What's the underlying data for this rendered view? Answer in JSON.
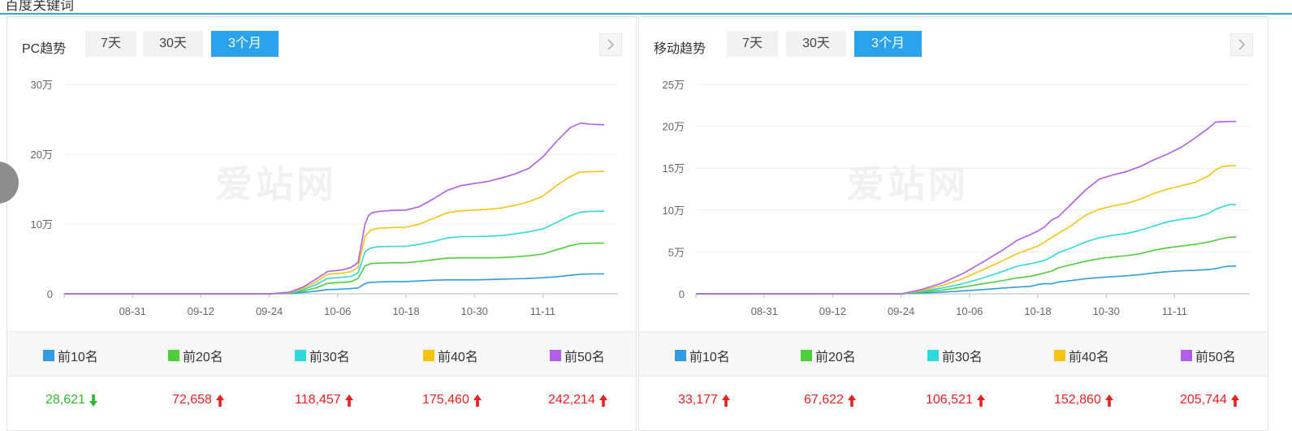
{
  "section_title": "百度关键词",
  "panels": [
    {
      "id": "pc",
      "name": "PC趋势",
      "tabs": [
        "7天",
        "30天",
        "3个月"
      ],
      "active_tab": 2,
      "watermark": "爱站网",
      "legend": [
        "前10名",
        "前20名",
        "前30名",
        "前40名",
        "前50名"
      ],
      "values": [
        {
          "text": "28,621",
          "trend": "down"
        },
        {
          "text": "72,658",
          "trend": "up"
        },
        {
          "text": "118,457",
          "trend": "up"
        },
        {
          "text": "175,460",
          "trend": "up"
        },
        {
          "text": "242,214",
          "trend": "up"
        }
      ]
    },
    {
      "id": "mobile",
      "name": "移动趋势",
      "tabs": [
        "7天",
        "30天",
        "3个月"
      ],
      "active_tab": 2,
      "watermark": "爱站网",
      "legend": [
        "前10名",
        "前20名",
        "前30名",
        "前40名",
        "前50名"
      ],
      "values": [
        {
          "text": "33,177",
          "trend": "up"
        },
        {
          "text": "67,622",
          "trend": "up"
        },
        {
          "text": "106,521",
          "trend": "up"
        },
        {
          "text": "152,860",
          "trend": "up"
        },
        {
          "text": "205,744",
          "trend": "up"
        }
      ]
    }
  ],
  "colors": {
    "accent": "#2aa3ec",
    "series": [
      "#2f9be4",
      "#4ccf3a",
      "#2dd9dd",
      "#f7c313",
      "#b25ce8"
    ],
    "up": "#f01d1d",
    "down": "#2dba2d"
  },
  "chart_data": [
    {
      "type": "line",
      "x_ticks": [
        "08-31",
        "09-12",
        "09-24",
        "10-06",
        "10-18",
        "10-30",
        "11-11"
      ],
      "y_ticks": [
        "0",
        "10万",
        "20万",
        "30万"
      ],
      "ylim": [
        0,
        300000
      ],
      "x": [
        0,
        10,
        20,
        30,
        33,
        35,
        37,
        38.5,
        40,
        41,
        42,
        43,
        44,
        44.5,
        45,
        46,
        48,
        50,
        52,
        54,
        56,
        58,
        60,
        62,
        64,
        66,
        68,
        70,
        72,
        74,
        75.5,
        77,
        78,
        78.5,
        79
      ],
      "series": [
        {
          "name": "前10名",
          "values": [
            0,
            0,
            0,
            0,
            500,
            2000,
            4000,
            6000,
            6500,
            7000,
            7500,
            8500,
            14500,
            16000,
            16500,
            17000,
            17500,
            17500,
            18500,
            19500,
            20000,
            20000,
            20000,
            20500,
            21000,
            21500,
            22000,
            23000,
            24500,
            26500,
            28000,
            28500,
            28500,
            28600,
            28621
          ]
        },
        {
          "name": "前20名",
          "values": [
            0,
            0,
            0,
            0,
            1000,
            4000,
            9000,
            15000,
            16000,
            16500,
            17500,
            22000,
            40000,
            42000,
            43500,
            44000,
            44500,
            44500,
            46500,
            49000,
            51000,
            51500,
            51500,
            51500,
            52000,
            53000,
            54500,
            57000,
            63000,
            69000,
            72000,
            72500,
            72600,
            72650,
            72658
          ]
        },
        {
          "name": "前30名",
          "values": [
            0,
            0,
            0,
            0,
            1500,
            6000,
            14000,
            22000,
            23000,
            24000,
            25000,
            30000,
            60000,
            64000,
            66000,
            67500,
            68000,
            68000,
            71000,
            75000,
            80000,
            82000,
            82000,
            82500,
            83500,
            86000,
            89000,
            93000,
            102000,
            112000,
            117000,
            118000,
            118300,
            118400,
            118457
          ]
        },
        {
          "name": "前40名",
          "values": [
            0,
            0,
            0,
            0,
            2000,
            8000,
            18000,
            28000,
            29000,
            30000,
            32000,
            38000,
            82000,
            88000,
            92000,
            94000,
            95000,
            95500,
            100000,
            108000,
            116000,
            119000,
            120000,
            121000,
            123000,
            127000,
            132000,
            140000,
            155000,
            168000,
            174500,
            175000,
            175200,
            175400,
            175460
          ]
        },
        {
          "name": "前50名",
          "values": [
            0,
            0,
            0,
            0,
            2500,
            10000,
            22000,
            32000,
            33500,
            35000,
            38000,
            45000,
            100000,
            112000,
            116000,
            118000,
            119500,
            120000,
            125000,
            136000,
            148000,
            155000,
            158000,
            161000,
            166000,
            172000,
            180000,
            196000,
            218000,
            238000,
            244500,
            243000,
            242500,
            242300,
            242214
          ]
        }
      ]
    },
    {
      "type": "line",
      "x_ticks": [
        "08-31",
        "09-12",
        "09-24",
        "10-06",
        "10-18",
        "10-30",
        "11-11"
      ],
      "y_ticks": [
        "0",
        "5万",
        "10万",
        "15万",
        "20万",
        "25万"
      ],
      "ylim": [
        0,
        250000
      ],
      "x": [
        0,
        10,
        20,
        30,
        33,
        36,
        39,
        42,
        45,
        47,
        49,
        50,
        51,
        52,
        53,
        55,
        57,
        59,
        61,
        63,
        65,
        67,
        69,
        71,
        73,
        75,
        76,
        77,
        78,
        79
      ],
      "series": [
        {
          "name": "前10名",
          "values": [
            0,
            0,
            0,
            0,
            1000,
            2000,
            3500,
            5000,
            7000,
            8000,
            9000,
            11000,
            12000,
            12000,
            14000,
            16000,
            18000,
            19500,
            20500,
            21500,
            23000,
            25000,
            26500,
            27500,
            28000,
            29000,
            30000,
            32000,
            33000,
            33177
          ]
        },
        {
          "name": "前20名",
          "values": [
            0,
            0,
            0,
            0,
            2000,
            4500,
            8000,
            12000,
            16000,
            19000,
            21000,
            23000,
            25000,
            27000,
            31000,
            35000,
            39000,
            42000,
            44000,
            45500,
            48000,
            52000,
            55000,
            57000,
            59000,
            62000,
            64000,
            66000,
            67500,
            67622
          ]
        },
        {
          "name": "前30名",
          "values": [
            0,
            0,
            0,
            0,
            3000,
            7000,
            12000,
            19000,
            27000,
            33000,
            36000,
            38000,
            40000,
            44000,
            49000,
            55000,
            62000,
            67000,
            70000,
            72000,
            76000,
            81000,
            86000,
            89000,
            91000,
            96000,
            101000,
            104000,
            106500,
            106521
          ]
        },
        {
          "name": "前40名",
          "values": [
            0,
            0,
            0,
            0,
            4000,
            10000,
            18000,
            29000,
            40000,
            48000,
            54000,
            57000,
            62000,
            67000,
            72000,
            82000,
            94000,
            101000,
            105000,
            108000,
            113000,
            120000,
            125000,
            129000,
            133000,
            141000,
            148000,
            152000,
            152800,
            152860
          ]
        },
        {
          "name": "前50名",
          "values": [
            0,
            0,
            0,
            0,
            5000,
            13000,
            24000,
            38000,
            53000,
            64000,
            71000,
            75000,
            80000,
            88000,
            92000,
            108000,
            124000,
            137000,
            142000,
            146000,
            152000,
            160000,
            167000,
            175000,
            186000,
            198000,
            205000,
            205500,
            205700,
            205744
          ]
        }
      ]
    }
  ]
}
